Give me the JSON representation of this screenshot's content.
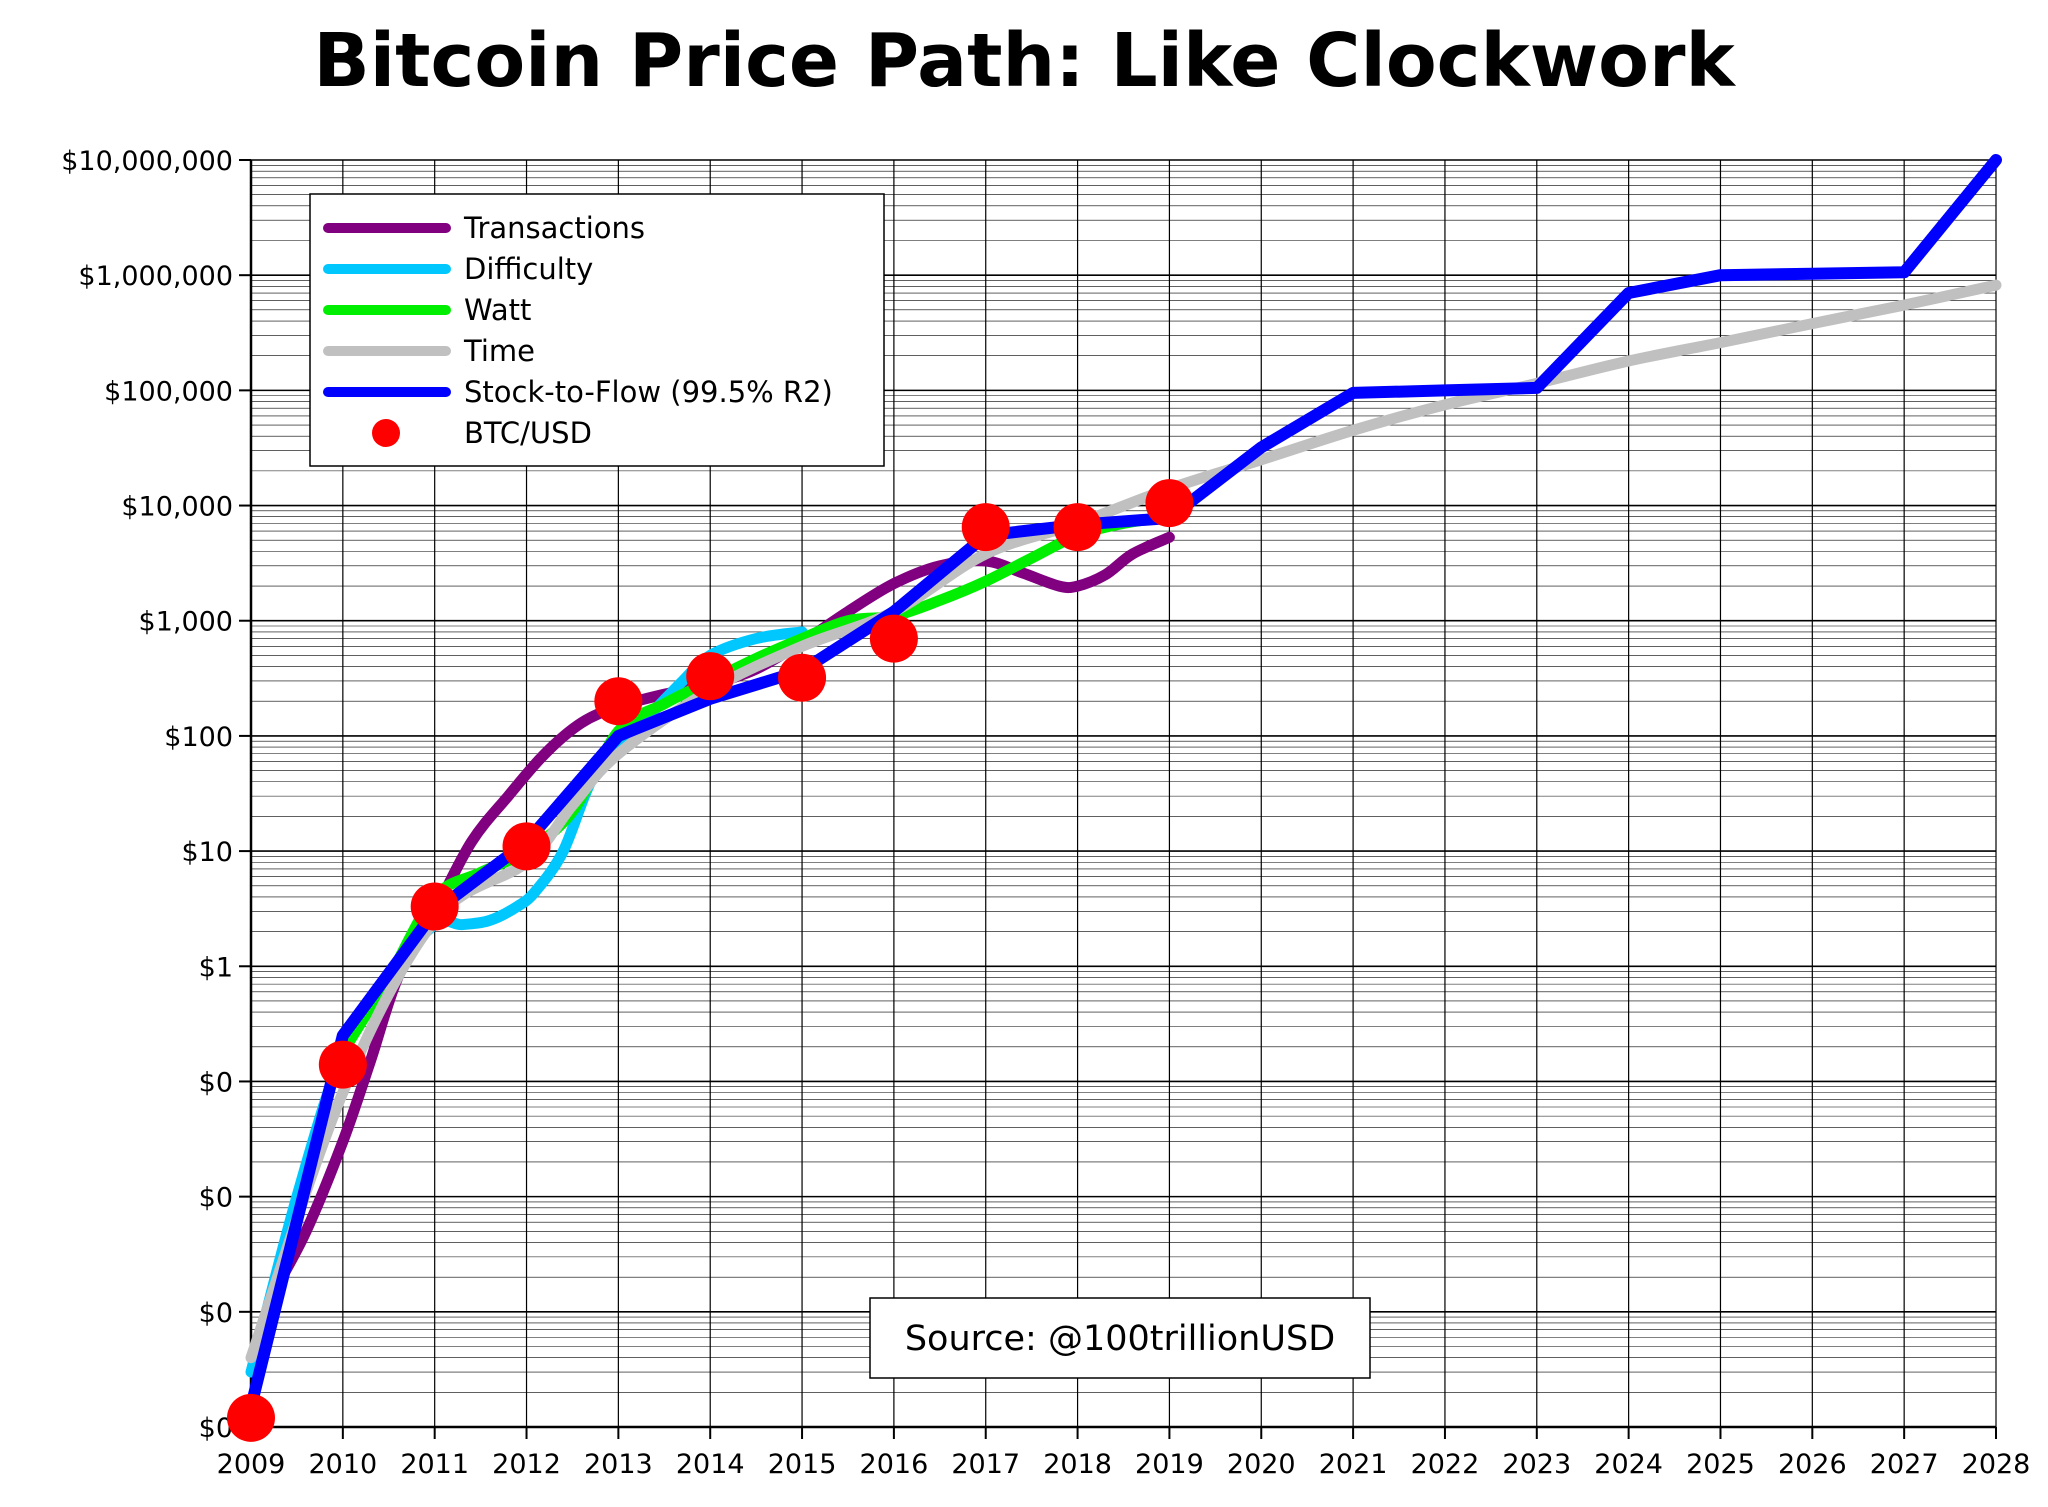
{
  "chart_data": {
    "type": "line",
    "title": "Bitcoin Price Path: Like Clockwork",
    "xlabel": "",
    "ylabel": "",
    "xlim": [
      2009,
      2028
    ],
    "ylim": [
      0.0001,
      10000000
    ],
    "y_scale": "log",
    "grid": true,
    "legend_position": "top-left",
    "x_ticks": [
      "2009",
      "2010",
      "2011",
      "2012",
      "2013",
      "2014",
      "2015",
      "2016",
      "2017",
      "2018",
      "2019",
      "2020",
      "2021",
      "2022",
      "2023",
      "2024",
      "2025",
      "2026",
      "2027",
      "2028"
    ],
    "y_ticks": [
      {
        "value": 0.0001,
        "label": "$0"
      },
      {
        "value": 0.001,
        "label": "$0"
      },
      {
        "value": 0.01,
        "label": "$0"
      },
      {
        "value": 0.1,
        "label": "$0"
      },
      {
        "value": 1,
        "label": "$1"
      },
      {
        "value": 10,
        "label": "$10"
      },
      {
        "value": 100,
        "label": "$100"
      },
      {
        "value": 1000,
        "label": "$1,000"
      },
      {
        "value": 10000,
        "label": "$10,000"
      },
      {
        "value": 100000,
        "label": "$100,000"
      },
      {
        "value": 1000000,
        "label": "$1,000,000"
      },
      {
        "value": 10000000,
        "label": "$10,000,000"
      }
    ],
    "series": [
      {
        "name": "Transactions",
        "color": "#800080",
        "kind": "line",
        "x": [
          2009.25,
          2009.6,
          2010.0,
          2010.3,
          2010.6,
          2011.0,
          2011.4,
          2011.8,
          2012.2,
          2012.6,
          2013.0,
          2013.5,
          2014.0,
          2014.5,
          2015.0,
          2015.5,
          2016.0,
          2016.5,
          2017.0,
          2017.4,
          2017.8,
          2018.0,
          2018.3,
          2018.6,
          2019.0
        ],
        "y": [
          0.0015,
          0.005,
          0.03,
          0.15,
          0.8,
          3,
          12,
          30,
          70,
          130,
          180,
          230,
          280,
          380,
          650,
          1200,
          2100,
          3000,
          3300,
          2600,
          2000,
          2000,
          2500,
          3800,
          5300
        ]
      },
      {
        "name": "Difficulty",
        "color": "#00c8ff",
        "kind": "line",
        "x": [
          2009.0,
          2009.5,
          2010.0,
          2010.5,
          2011.0,
          2011.3,
          2011.6,
          2011.9,
          2012.1,
          2012.4,
          2012.7,
          2013.0,
          2013.3,
          2013.7,
          2014.0,
          2014.5,
          2015.0
        ],
        "y": [
          0.0003,
          0.01,
          0.18,
          0.8,
          2.3,
          2.3,
          2.5,
          3.3,
          4.5,
          10,
          40,
          80,
          140,
          300,
          500,
          700,
          800
        ]
      },
      {
        "name": "Watt",
        "color": "#00ee00",
        "kind": "line",
        "x": [
          2010.0,
          2010.5,
          2011.0,
          2011.5,
          2012.0,
          2012.5,
          2013.0,
          2013.5,
          2014.0,
          2014.5,
          2015.0,
          2015.5,
          2016.0,
          2016.5,
          2017.0,
          2017.5,
          2018.0,
          2018.5,
          2019.0
        ],
        "y": [
          0.18,
          0.8,
          4,
          6.5,
          10,
          22,
          110,
          190,
          300,
          470,
          700,
          1000,
          1100,
          1500,
          2200,
          3500,
          5500,
          7000,
          8000
        ]
      },
      {
        "name": "Time",
        "color": "#c0c0c0",
        "kind": "line",
        "x": [
          2009.0,
          2010.0,
          2011.0,
          2012.0,
          2012.5,
          2013.0,
          2014.0,
          2015.0,
          2016.0,
          2017.0,
          2018.0,
          2019.0,
          2020.0,
          2021.0,
          2022.0,
          2023.0,
          2024.0,
          2025.0,
          2026.0,
          2027.0,
          2028.0
        ],
        "y": [
          0.0004,
          0.08,
          2.5,
          8,
          25,
          70,
          250,
          600,
          1200,
          3800,
          7000,
          14000,
          25000,
          45000,
          75000,
          115000,
          180000,
          260000,
          380000,
          550000,
          820000
        ]
      },
      {
        "name": "Stock-to-Flow (99.5% R2)",
        "color": "#0000ff",
        "kind": "line",
        "x": [
          2009.0,
          2010.0,
          2011.0,
          2012.0,
          2013.0,
          2014.0,
          2015.0,
          2016.0,
          2017.0,
          2018.0,
          2019.0,
          2020.0,
          2021.0,
          2022.0,
          2023.0,
          2024.0,
          2025.0,
          2026.0,
          2027.0,
          2028.0
        ],
        "y": [
          0.00015,
          0.25,
          3,
          12,
          100,
          210,
          370,
          1200,
          5500,
          6800,
          7800,
          32000,
          95000,
          100000,
          105000,
          700000,
          1000000,
          1030000,
          1060000,
          10000000
        ]
      },
      {
        "name": "BTC/USD",
        "color": "#ff0000",
        "kind": "scatter",
        "x": [
          2009.0,
          2010.0,
          2011.0,
          2012.0,
          2013.0,
          2014.0,
          2015.0,
          2016.0,
          2017.0,
          2018.0,
          2019.0
        ],
        "y": [
          0.00012,
          0.14,
          3.3,
          11,
          200,
          330,
          320,
          700,
          6500,
          6500,
          10500
        ]
      }
    ]
  },
  "source": "Source: @100trillionUSD"
}
